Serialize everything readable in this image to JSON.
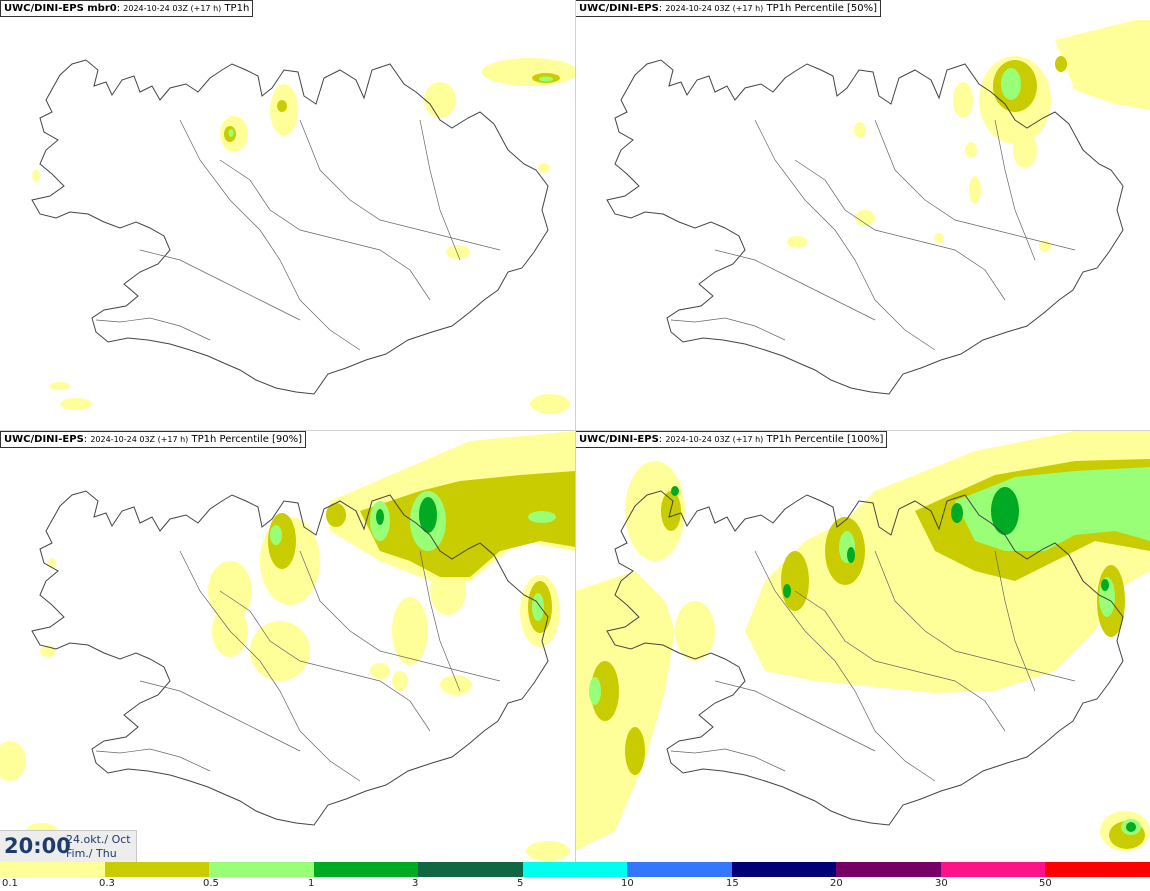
{
  "panels": [
    {
      "id": "mbr0",
      "model": "UWC/DINI-EPS mbr0",
      "run": "2024-10-24 03Z (+17 h)",
      "field": "TP1h"
    },
    {
      "id": "p50",
      "model": "UWC/DINI-EPS",
      "run": "2024-10-24 03Z (+17 h)",
      "field": "TP1h Percentile [50%]"
    },
    {
      "id": "p90",
      "model": "UWC/DINI-EPS",
      "run": "2024-10-24 03Z (+17 h)",
      "field": "TP1h Percentile [90%]"
    },
    {
      "id": "p100",
      "model": "UWC/DINI-EPS",
      "run": "2024-10-24 03Z (+17 h)",
      "field": "TP1h Percentile [100%]"
    }
  ],
  "valid_time": {
    "time": "20:00",
    "date_line1": "24.okt./ Oct",
    "date_line2": "Fim./ Thu"
  },
  "legend": {
    "colors": [
      "#ffff99",
      "#c8cc00",
      "#99ff77",
      "#00aa22",
      "#116644",
      "#00ffee",
      "#3377ff",
      "#000077",
      "#770066",
      "#ff1188",
      "#ff0000"
    ],
    "ticks": [
      "0.1",
      "0.3",
      "0.5",
      "1",
      "3",
      "5",
      "10",
      "15",
      "20",
      "30",
      "50"
    ]
  }
}
